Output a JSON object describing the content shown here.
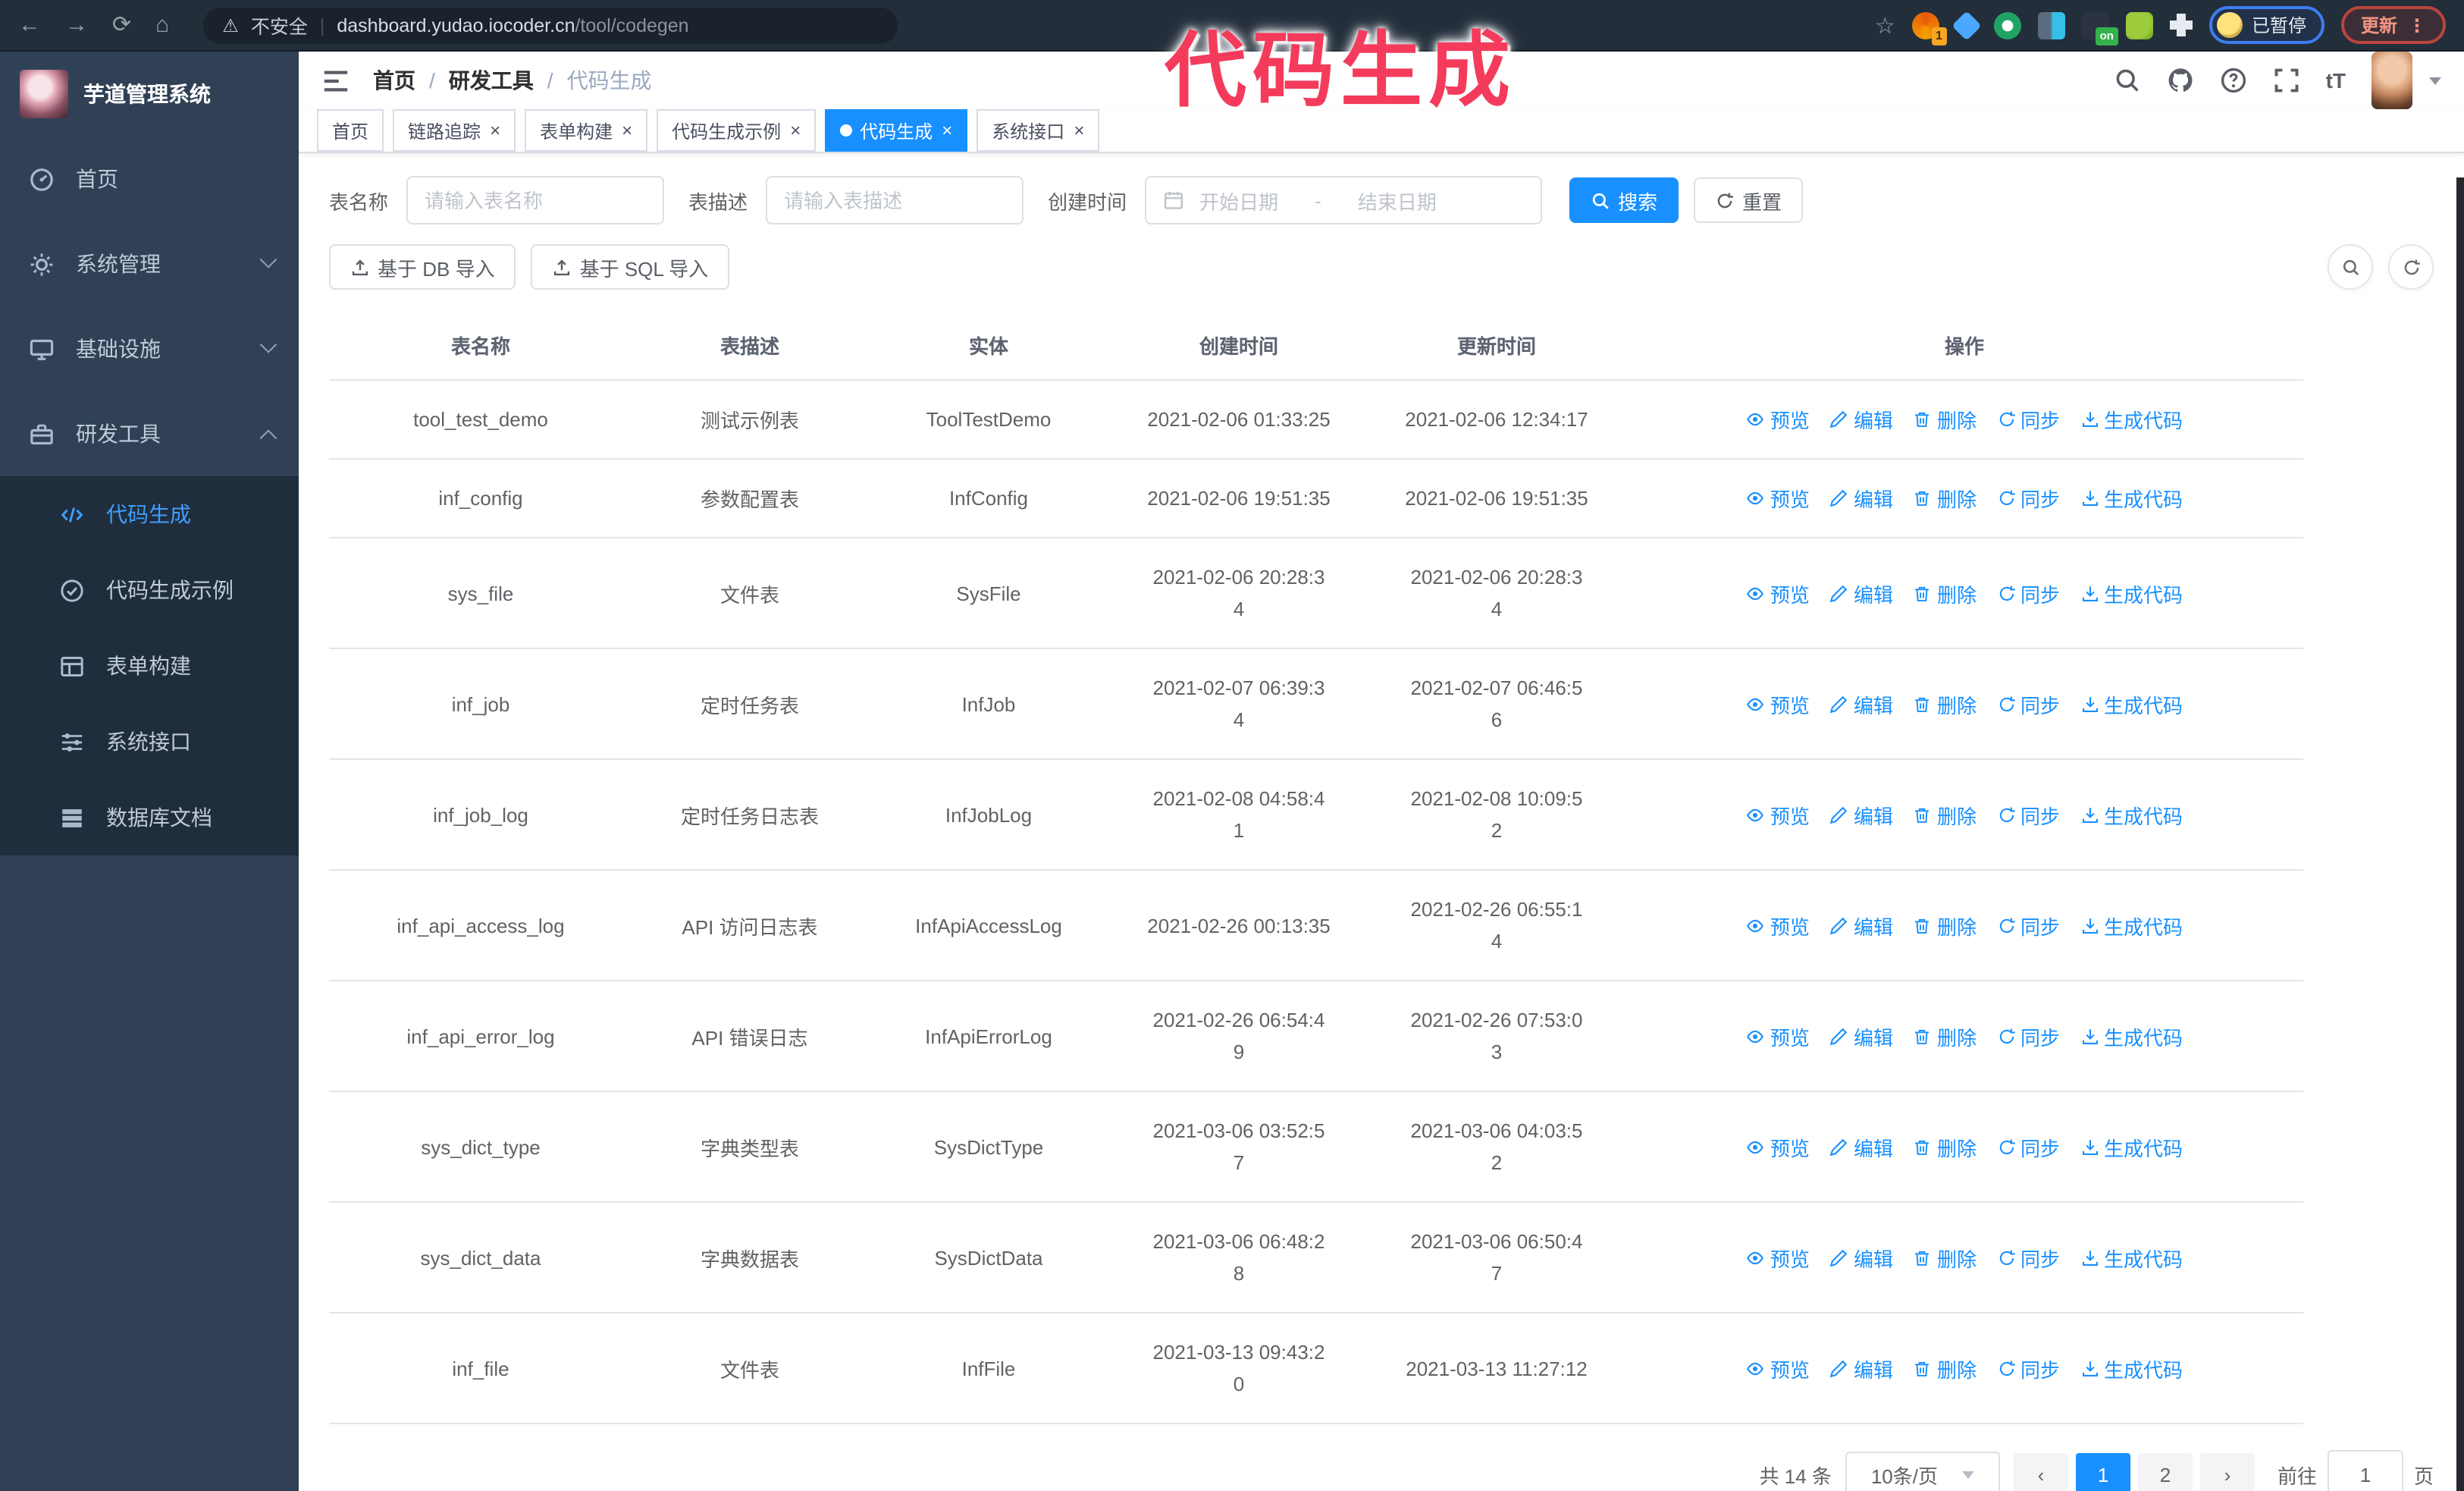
{
  "colors": {
    "primary": "#1890ff",
    "sidebar_bg": "#304156",
    "submenu_bg": "#1f2d3d",
    "annotation": "#f43b5c",
    "active_menu": "#409eff"
  },
  "icons": {
    "back": "←",
    "forward": "→",
    "reload": "⟳",
    "home": "⌂",
    "warning": "⚠",
    "divider": "|",
    "star": "☆",
    "dots": "⋮",
    "close": "×",
    "slash": "/",
    "prev": "‹",
    "next": "›",
    "font_size": "tT",
    "question": "?",
    "date_dash": "-"
  },
  "browser": {
    "security_label": "不安全",
    "url_host": "dashboard.yudao.iocoder.cn",
    "url_path": "/tool/codegen",
    "extension_badge": "1",
    "extension_on_badge": "on",
    "paused_label": "已暂停",
    "update_label": "更新"
  },
  "annotation": {
    "text": "代码生成"
  },
  "sidebar": {
    "title": "芋道管理系统",
    "items": [
      {
        "label": "首页",
        "icon": "dashboard-icon"
      },
      {
        "label": "系统管理",
        "icon": "gear-icon"
      },
      {
        "label": "基础设施",
        "icon": "monitor-icon"
      },
      {
        "label": "研发工具",
        "icon": "toolbox-icon"
      }
    ],
    "subitems": [
      {
        "label": "代码生成",
        "icon": "code-icon",
        "active": true
      },
      {
        "label": "代码生成示例",
        "icon": "shield-check-icon"
      },
      {
        "label": "表单构建",
        "icon": "form-icon"
      },
      {
        "label": "系统接口",
        "icon": "sliders-icon"
      },
      {
        "label": "数据库文档",
        "icon": "database-icon"
      }
    ]
  },
  "navbar": {
    "breadcrumb": [
      "首页",
      "研发工具",
      "代码生成"
    ]
  },
  "tabs": [
    {
      "label": "首页",
      "closable": false,
      "active": false
    },
    {
      "label": "链路追踪",
      "closable": true,
      "active": false
    },
    {
      "label": "表单构建",
      "closable": true,
      "active": false
    },
    {
      "label": "代码生成示例",
      "closable": true,
      "active": false
    },
    {
      "label": "代码生成",
      "closable": true,
      "active": true
    },
    {
      "label": "系统接口",
      "closable": true,
      "active": false
    }
  ],
  "filters": {
    "table_name_label": "表名称",
    "table_name_placeholder": "请输入表名称",
    "table_desc_label": "表描述",
    "table_desc_placeholder": "请输入表描述",
    "create_time_label": "创建时间",
    "date_start_placeholder": "开始日期",
    "date_separator": "-",
    "date_end_placeholder": "结束日期",
    "search_label": "搜索",
    "reset_label": "重置"
  },
  "toolbar": {
    "import_db_label": "基于 DB 导入",
    "import_sql_label": "基于 SQL 导入"
  },
  "table": {
    "columns": [
      "表名称",
      "表描述",
      "实体",
      "创建时间",
      "更新时间",
      "操作"
    ],
    "actions": [
      "预览",
      "编辑",
      "删除",
      "同步",
      "生成代码"
    ],
    "rows": [
      {
        "name": "tool_test_demo",
        "desc": "测试示例表",
        "entity": "ToolTestDemo",
        "created": [
          "2021-02-06 01:33:25"
        ],
        "updated": [
          "2021-02-06 12:34:17"
        ]
      },
      {
        "name": "inf_config",
        "desc": "参数配置表",
        "entity": "InfConfig",
        "created": [
          "2021-02-06 19:51:35"
        ],
        "updated": [
          "2021-02-06 19:51:35"
        ]
      },
      {
        "name": "sys_file",
        "desc": "文件表",
        "entity": "SysFile",
        "created": [
          "2021-02-06 20:28:3",
          "4"
        ],
        "updated": [
          "2021-02-06 20:28:3",
          "4"
        ]
      },
      {
        "name": "inf_job",
        "desc": "定时任务表",
        "entity": "InfJob",
        "created": [
          "2021-02-07 06:39:3",
          "4"
        ],
        "updated": [
          "2021-02-07 06:46:5",
          "6"
        ]
      },
      {
        "name": "inf_job_log",
        "desc": "定时任务日志表",
        "entity": "InfJobLog",
        "created": [
          "2021-02-08 04:58:4",
          "1"
        ],
        "updated": [
          "2021-02-08 10:09:5",
          "2"
        ]
      },
      {
        "name": "inf_api_access_log",
        "desc": "API 访问日志表",
        "entity": "InfApiAccessLog",
        "created": [
          "2021-02-26 00:13:35"
        ],
        "updated": [
          "2021-02-26 06:55:1",
          "4"
        ]
      },
      {
        "name": "inf_api_error_log",
        "desc": "API 错误日志",
        "entity": "InfApiErrorLog",
        "created": [
          "2021-02-26 06:54:4",
          "9"
        ],
        "updated": [
          "2021-02-26 07:53:0",
          "3"
        ]
      },
      {
        "name": "sys_dict_type",
        "desc": "字典类型表",
        "entity": "SysDictType",
        "created": [
          "2021-03-06 03:52:5",
          "7"
        ],
        "updated": [
          "2021-03-06 04:03:5",
          "2"
        ]
      },
      {
        "name": "sys_dict_data",
        "desc": "字典数据表",
        "entity": "SysDictData",
        "created": [
          "2021-03-06 06:48:2",
          "8"
        ],
        "updated": [
          "2021-03-06 06:50:4",
          "7"
        ]
      },
      {
        "name": "inf_file",
        "desc": "文件表",
        "entity": "InfFile",
        "created": [
          "2021-03-13 09:43:2",
          "0"
        ],
        "updated": [
          "2021-03-13 11:27:12"
        ]
      }
    ]
  },
  "pagination": {
    "total_label": "共 14 条",
    "page_size": "10条/页",
    "pages": [
      "1",
      "2"
    ],
    "active_page": "1",
    "goto_label": "前往",
    "goto_value": "1",
    "page_unit": "页"
  }
}
